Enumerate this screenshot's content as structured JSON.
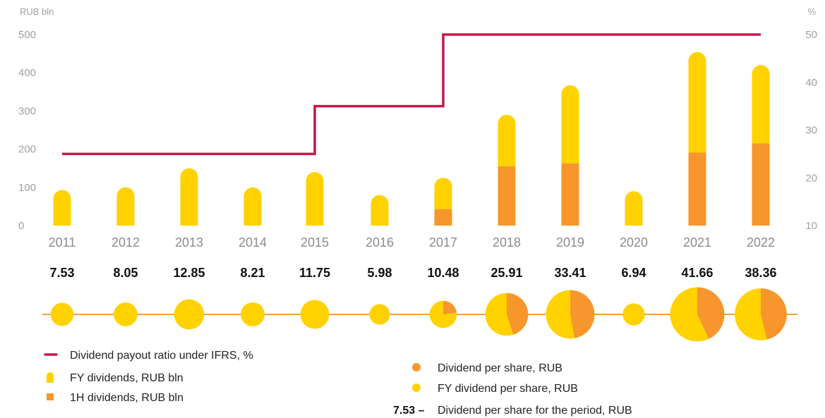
{
  "colors": {
    "fy": "#ffd200",
    "h1": "#f7962c",
    "payout": "#c8174a",
    "timeline": "#f7a23c",
    "axis_text": "#a0a0a0"
  },
  "chart_data": {
    "type": "bar",
    "title": "",
    "left_axis_label": "RUB bln",
    "right_axis_label": "%",
    "left_ticks": [
      "0",
      "100",
      "200",
      "300",
      "400",
      "500"
    ],
    "right_ticks": [
      "10",
      "20",
      "30",
      "40",
      "50"
    ],
    "ylim_left": [
      0,
      500
    ],
    "ylim_right": [
      10,
      50
    ],
    "categories": [
      "2011",
      "2012",
      "2013",
      "2014",
      "2015",
      "2016",
      "2017",
      "2018",
      "2019",
      "2020",
      "2021",
      "2022"
    ],
    "series": [
      {
        "name": "1H dividends, RUB bln",
        "values": [
          0,
          0,
          0,
          0,
          0,
          0,
          43,
          155,
          163,
          0,
          191,
          215
        ]
      },
      {
        "name": "FY dividends, RUB bln",
        "values": [
          93,
          100,
          150,
          100,
          140,
          80,
          82,
          135,
          204,
          90,
          263,
          205
        ]
      },
      {
        "name": "Dividend payout ratio under IFRS, %",
        "values": [
          25,
          25,
          25,
          25,
          35,
          35,
          50,
          50,
          50,
          50,
          50,
          50
        ]
      }
    ],
    "dividend_per_share_values": [
      "7.53",
      "8.05",
      "12.85",
      "8.21",
      "11.75",
      "5.98",
      "10.48",
      "25.91",
      "33.41",
      "6.94",
      "41.66",
      "38.36"
    ],
    "dps_1h_fraction": [
      0,
      0,
      0,
      0,
      0,
      0,
      0.23,
      0.45,
      0.47,
      0,
      0.43,
      0.46
    ]
  },
  "legend": {
    "payout": "Dividend payout ratio under IFRS, %",
    "fy": "FY dividends, RUB bln",
    "h1": "1H dividends, RUB bln",
    "dps": "Dividend per share, RUB",
    "fy_dps": "FY dividend per share, RUB",
    "example_value": "7.53 –",
    "example_label": "Dividend per share for the period, RUB"
  }
}
